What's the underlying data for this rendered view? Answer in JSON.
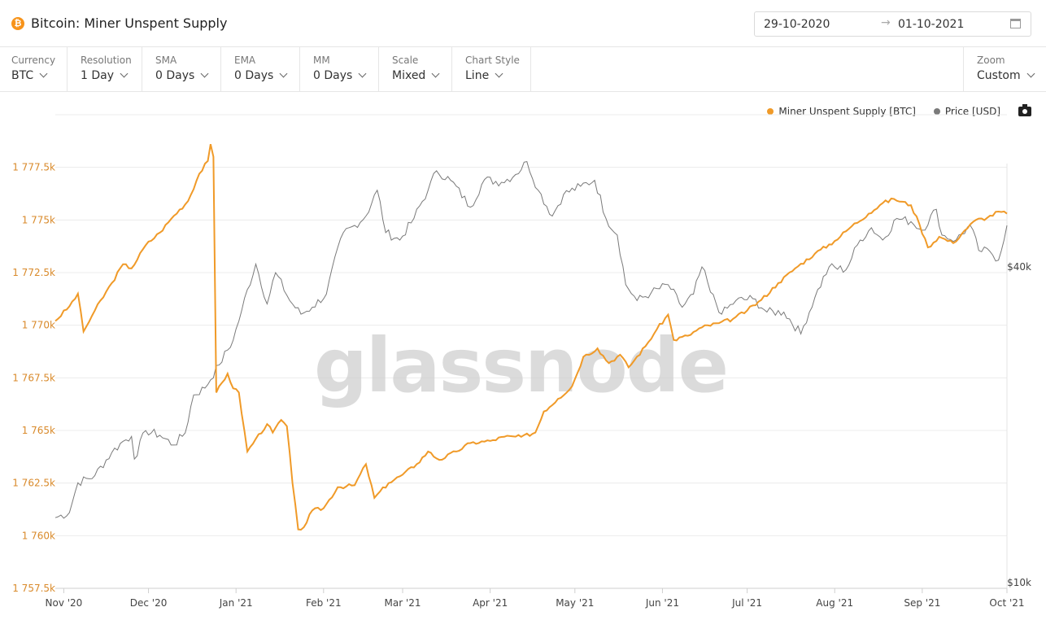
{
  "header": {
    "title": "Bitcoin: Miner Unspent Supply",
    "coin_icon": "bitcoin-icon",
    "date_start": "29-10-2020",
    "date_arrow": "→",
    "date_end": "01-10-2021"
  },
  "toolbar": [
    {
      "label": "Currency",
      "value": "BTC"
    },
    {
      "label": "Resolution",
      "value": "1 Day"
    },
    {
      "label": "SMA",
      "value": "0 Days"
    },
    {
      "label": "EMA",
      "value": "0 Days"
    },
    {
      "label": "MM",
      "value": "0 Days"
    },
    {
      "label": "Scale",
      "value": "Mixed"
    },
    {
      "label": "Chart Style",
      "value": "Line"
    }
  ],
  "zoom": {
    "label": "Zoom",
    "value": "Custom"
  },
  "legend": [
    {
      "label": "Miner Unspent Supply [BTC]",
      "color": "#f09a28"
    },
    {
      "label": "Price [USD]",
      "color": "#7a7a7a"
    }
  ],
  "watermark": "glassnode",
  "chart_data": {
    "type": "line",
    "y_left_ticks": [
      "1 757.5k",
      "1 760k",
      "1 762.5k",
      "1 765k",
      "1 767.5k",
      "1 770k",
      "1 772.5k",
      "1 775k",
      "1 777.5k"
    ],
    "y_left_range": [
      1757500,
      1780000
    ],
    "y_right_ticks": [
      "$10k",
      "$40k"
    ],
    "y_right_scale": "log",
    "x_ticks": [
      "Nov '20",
      "Dec '20",
      "Jan '21",
      "Feb '21",
      "Mar '21",
      "Apr '21",
      "May '21",
      "Jun '21",
      "Jul '21",
      "Aug '21",
      "Sep '21",
      "Oct '21"
    ],
    "x_range": [
      "2020-10-29",
      "2021-10-01"
    ],
    "series": [
      {
        "name": "Miner Unspent Supply [BTC]",
        "color": "#f09a28",
        "axis": "left",
        "points": [
          [
            "2020-10-29",
            1770200
          ],
          [
            "2020-11-03",
            1770900
          ],
          [
            "2020-11-06",
            1771500
          ],
          [
            "2020-11-08",
            1769700
          ],
          [
            "2020-11-12",
            1770700
          ],
          [
            "2020-11-18",
            1772000
          ],
          [
            "2020-11-22",
            1772900
          ],
          [
            "2020-11-25",
            1772700
          ],
          [
            "2020-11-30",
            1773800
          ],
          [
            "2020-12-05",
            1774400
          ],
          [
            "2020-12-10",
            1775200
          ],
          [
            "2020-12-15",
            1775900
          ],
          [
            "2020-12-19",
            1777200
          ],
          [
            "2020-12-22",
            1777800
          ],
          [
            "2020-12-23",
            1778600
          ],
          [
            "2020-12-24",
            1778000
          ],
          [
            "2020-12-25",
            1766800
          ],
          [
            "2020-12-29",
            1767700
          ],
          [
            "2020-12-31",
            1767000
          ],
          [
            "2021-01-02",
            1766800
          ],
          [
            "2021-01-05",
            1764000
          ],
          [
            "2021-01-08",
            1764600
          ],
          [
            "2021-01-12",
            1765300
          ],
          [
            "2021-01-14",
            1764900
          ],
          [
            "2021-01-17",
            1765500
          ],
          [
            "2021-01-19",
            1765200
          ],
          [
            "2021-01-21",
            1762500
          ],
          [
            "2021-01-23",
            1760300
          ],
          [
            "2021-01-25",
            1760400
          ],
          [
            "2021-01-28",
            1761200
          ],
          [
            "2021-02-01",
            1761300
          ],
          [
            "2021-02-06",
            1762300
          ],
          [
            "2021-02-12",
            1762400
          ],
          [
            "2021-02-16",
            1763400
          ],
          [
            "2021-02-19",
            1761800
          ],
          [
            "2021-02-24",
            1762500
          ],
          [
            "2021-03-01",
            1762900
          ],
          [
            "2021-03-06",
            1763400
          ],
          [
            "2021-03-10",
            1764000
          ],
          [
            "2021-03-14",
            1763600
          ],
          [
            "2021-03-20",
            1764000
          ],
          [
            "2021-03-25",
            1764400
          ],
          [
            "2021-04-01",
            1764500
          ],
          [
            "2021-04-06",
            1764700
          ],
          [
            "2021-04-12",
            1764700
          ],
          [
            "2021-04-17",
            1764900
          ],
          [
            "2021-04-20",
            1765900
          ],
          [
            "2021-04-25",
            1766500
          ],
          [
            "2021-04-30",
            1767100
          ],
          [
            "2021-05-04",
            1768500
          ],
          [
            "2021-05-09",
            1768900
          ],
          [
            "2021-05-13",
            1768200
          ],
          [
            "2021-05-17",
            1768600
          ],
          [
            "2021-05-20",
            1768000
          ],
          [
            "2021-05-26",
            1769000
          ],
          [
            "2021-05-30",
            1769800
          ],
          [
            "2021-06-03",
            1770500
          ],
          [
            "2021-06-05",
            1769300
          ],
          [
            "2021-06-10",
            1769500
          ],
          [
            "2021-06-15",
            1769900
          ],
          [
            "2021-06-21",
            1770100
          ],
          [
            "2021-06-26",
            1770300
          ],
          [
            "2021-07-01",
            1770700
          ],
          [
            "2021-07-06",
            1771200
          ],
          [
            "2021-07-12",
            1772000
          ],
          [
            "2021-07-18",
            1772700
          ],
          [
            "2021-07-25",
            1773400
          ],
          [
            "2021-08-01",
            1774000
          ],
          [
            "2021-08-07",
            1774700
          ],
          [
            "2021-08-13",
            1775300
          ],
          [
            "2021-08-18",
            1775800
          ],
          [
            "2021-08-22",
            1776000
          ],
          [
            "2021-08-28",
            1775700
          ],
          [
            "2021-08-31",
            1774800
          ],
          [
            "2021-09-03",
            1773700
          ],
          [
            "2021-09-07",
            1774200
          ],
          [
            "2021-09-12",
            1773900
          ],
          [
            "2021-09-16",
            1774500
          ],
          [
            "2021-09-20",
            1775000
          ],
          [
            "2021-09-24",
            1775100
          ],
          [
            "2021-09-28",
            1775400
          ],
          [
            "2021-10-01",
            1775300
          ]
        ]
      },
      {
        "name": "Price [USD]",
        "color": "#7a7a7a",
        "axis": "right",
        "points": [
          [
            "2020-10-29",
            13300
          ],
          [
            "2020-11-03",
            13600
          ],
          [
            "2020-11-06",
            15500
          ],
          [
            "2020-11-12",
            16000
          ],
          [
            "2020-11-18",
            17700
          ],
          [
            "2020-11-22",
            18600
          ],
          [
            "2020-11-25",
            19000
          ],
          [
            "2020-11-26",
            17200
          ],
          [
            "2020-11-30",
            19500
          ],
          [
            "2020-12-05",
            19100
          ],
          [
            "2020-12-10",
            18300
          ],
          [
            "2020-12-14",
            19300
          ],
          [
            "2020-12-17",
            22800
          ],
          [
            "2020-12-21",
            23500
          ],
          [
            "2020-12-26",
            26000
          ],
          [
            "2020-12-31",
            29000
          ],
          [
            "2021-01-03",
            33000
          ],
          [
            "2021-01-08",
            40500
          ],
          [
            "2021-01-12",
            34000
          ],
          [
            "2021-01-15",
            39000
          ],
          [
            "2021-01-20",
            34500
          ],
          [
            "2021-01-24",
            32500
          ],
          [
            "2021-01-28",
            33500
          ],
          [
            "2021-02-02",
            35500
          ],
          [
            "2021-02-08",
            46500
          ],
          [
            "2021-02-12",
            48000
          ],
          [
            "2021-02-16",
            50000
          ],
          [
            "2021-02-20",
            56000
          ],
          [
            "2021-02-23",
            46500
          ],
          [
            "2021-02-28",
            45000
          ],
          [
            "2021-03-05",
            49500
          ],
          [
            "2021-03-10",
            56000
          ],
          [
            "2021-03-13",
            61000
          ],
          [
            "2021-03-18",
            58500
          ],
          [
            "2021-03-25",
            52000
          ],
          [
            "2021-03-30",
            58700
          ],
          [
            "2021-04-05",
            58000
          ],
          [
            "2021-04-10",
            60000
          ],
          [
            "2021-04-14",
            63500
          ],
          [
            "2021-04-18",
            56000
          ],
          [
            "2021-04-23",
            50000
          ],
          [
            "2021-04-27",
            55000
          ],
          [
            "2021-05-03",
            57000
          ],
          [
            "2021-05-08",
            58500
          ],
          [
            "2021-05-12",
            49500
          ],
          [
            "2021-05-16",
            46000
          ],
          [
            "2021-05-19",
            37000
          ],
          [
            "2021-05-23",
            34500
          ],
          [
            "2021-05-28",
            35700
          ],
          [
            "2021-06-03",
            37000
          ],
          [
            "2021-06-08",
            33500
          ],
          [
            "2021-06-12",
            35500
          ],
          [
            "2021-06-15",
            40000
          ],
          [
            "2021-06-18",
            35800
          ],
          [
            "2021-06-22",
            32500
          ],
          [
            "2021-06-27",
            34500
          ],
          [
            "2021-07-03",
            34800
          ],
          [
            "2021-07-08",
            32800
          ],
          [
            "2021-07-14",
            32800
          ],
          [
            "2021-07-20",
            29800
          ],
          [
            "2021-07-25",
            35000
          ],
          [
            "2021-07-30",
            40000
          ],
          [
            "2021-08-05",
            39500
          ],
          [
            "2021-08-10",
            45000
          ],
          [
            "2021-08-14",
            47500
          ],
          [
            "2021-08-18",
            45000
          ],
          [
            "2021-08-23",
            49500
          ],
          [
            "2021-08-28",
            48800
          ],
          [
            "2021-09-01",
            47000
          ],
          [
            "2021-09-06",
            51500
          ],
          [
            "2021-09-08",
            46000
          ],
          [
            "2021-09-13",
            45000
          ],
          [
            "2021-09-18",
            48000
          ],
          [
            "2021-09-21",
            43000
          ],
          [
            "2021-09-25",
            42800
          ],
          [
            "2021-09-28",
            41200
          ],
          [
            "2021-10-01",
            48000
          ]
        ]
      }
    ]
  }
}
